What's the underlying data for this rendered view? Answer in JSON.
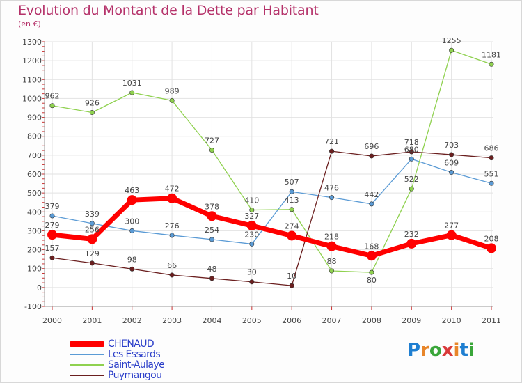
{
  "title": "Evolution du Montant de la Dette par Habitant",
  "subtitle": "(en €)",
  "logo": {
    "text": "Proxiti",
    "letter_colors": [
      "#1f7fd1",
      "#e8862a",
      "#3aa63a",
      "#d93a3a",
      "#e8862a",
      "#1f7fd1",
      "#3aa63a"
    ]
  },
  "chart_data": {
    "type": "line",
    "title": "Evolution du Montant de la Dette par Habitant",
    "ylabel": "(en €)",
    "xlabel": "",
    "x": [
      "2000",
      "2001",
      "2002",
      "2003",
      "2004",
      "2005",
      "2006",
      "2007",
      "2008",
      "2009",
      "2010",
      "2011"
    ],
    "ylim": [
      -100,
      1300
    ],
    "yticks": [
      -100,
      0,
      100,
      200,
      300,
      400,
      500,
      600,
      700,
      800,
      900,
      1000,
      1100,
      1200,
      1300
    ],
    "grid": true,
    "legend_position": "bottom-left",
    "series": [
      {
        "name": "CHENAUD",
        "color": "#ff0000",
        "emphasis": true,
        "values": [
          279,
          256,
          463,
          472,
          378,
          327,
          274,
          218,
          168,
          232,
          277,
          208
        ]
      },
      {
        "name": "Les Essards",
        "color": "#5b9bd5",
        "emphasis": false,
        "values": [
          379,
          339,
          300,
          276,
          254,
          230,
          507,
          476,
          442,
          680,
          609,
          551
        ]
      },
      {
        "name": "Saint-Aulaye",
        "color": "#8fd14f",
        "emphasis": false,
        "values": [
          962,
          926,
          1031,
          989,
          727,
          410,
          413,
          88,
          80,
          522,
          1255,
          1181
        ]
      },
      {
        "name": "Puymangou",
        "color": "#6b1f1f",
        "emphasis": false,
        "values": [
          157,
          129,
          98,
          66,
          48,
          30,
          10,
          721,
          696,
          718,
          703,
          686
        ]
      }
    ]
  }
}
